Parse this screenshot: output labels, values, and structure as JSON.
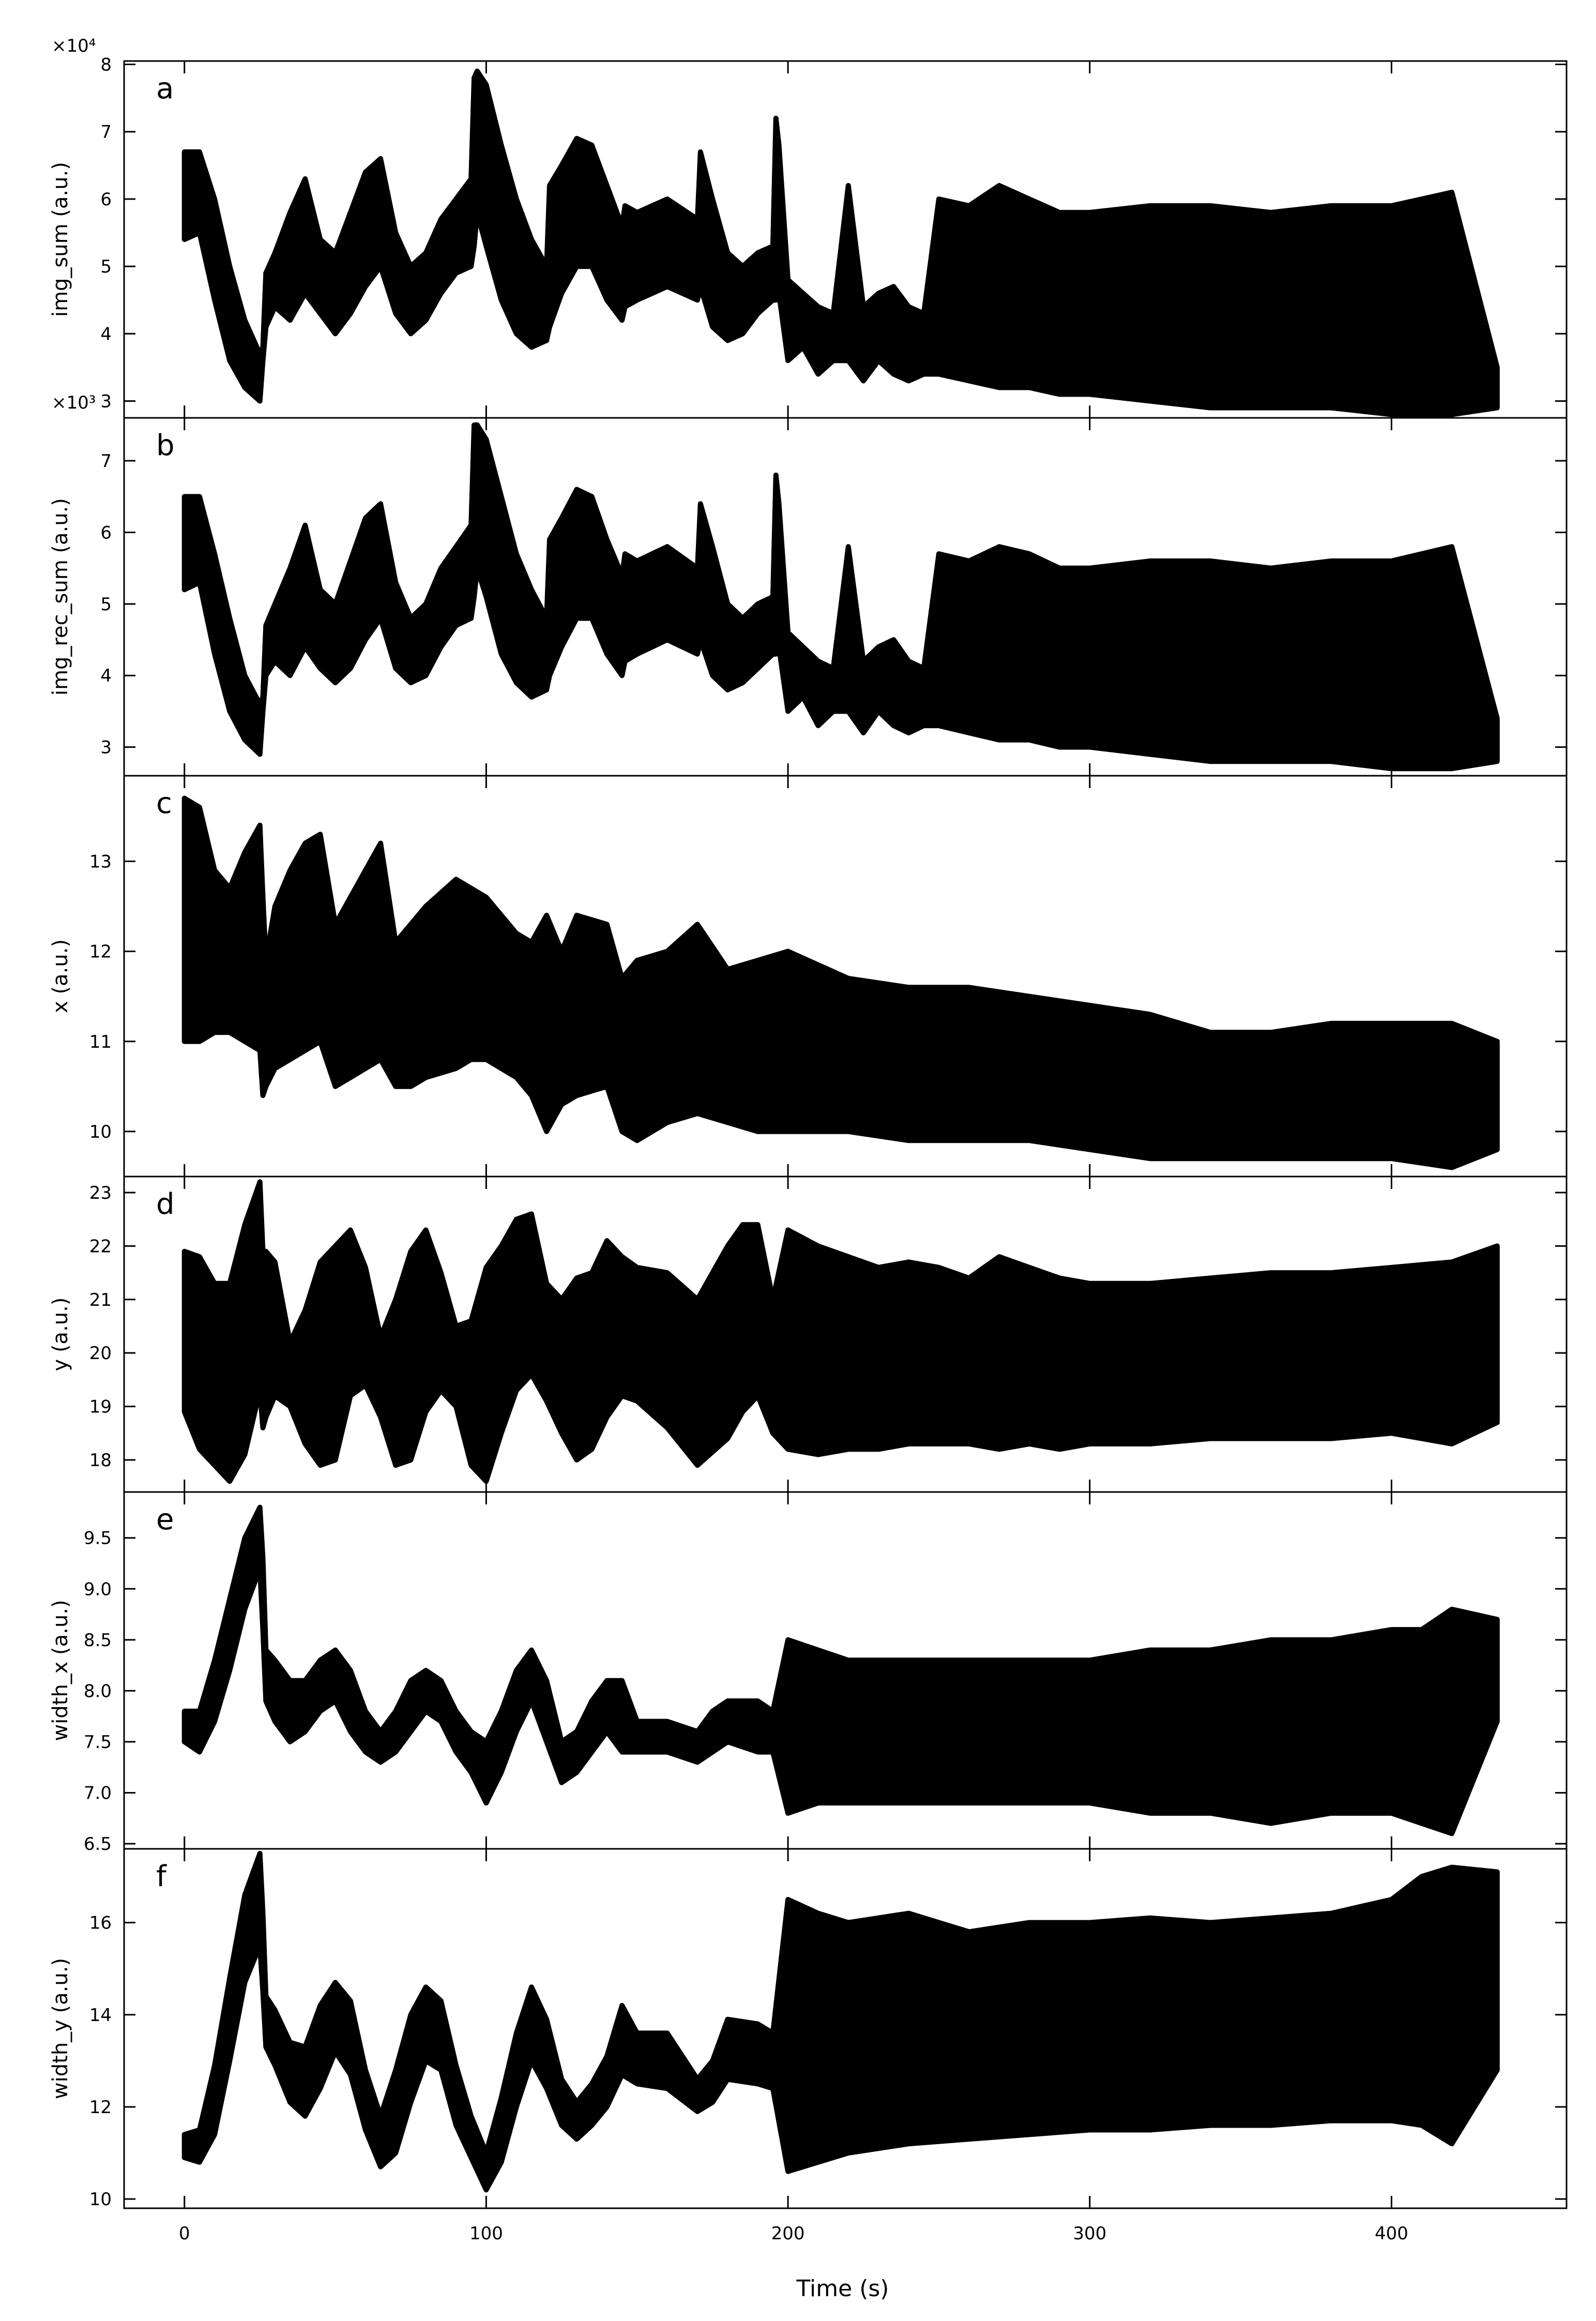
{
  "figure": {
    "xlabel": "Time (s)",
    "x_tick_labels": [
      "0",
      "100",
      "200",
      "300",
      "400"
    ]
  },
  "chart_data": [
    {
      "type": "scatter",
      "panel_label": "a",
      "ylabel": "img_sum (a.u.)",
      "y_multiplier": "×10⁴",
      "xlim": [
        -20,
        458
      ],
      "ylim": [
        2.75,
        8.05
      ],
      "y_ticks": [
        3,
        4,
        5,
        6,
        7,
        8
      ],
      "y_tick_labels": [
        "3",
        "4",
        "5",
        "6",
        "7",
        "8"
      ],
      "envelope_x": [
        0,
        5,
        10,
        15,
        20,
        25,
        26,
        27,
        30,
        35,
        40,
        45,
        50,
        55,
        60,
        65,
        70,
        75,
        80,
        85,
        90,
        95,
        96,
        97,
        100,
        105,
        110,
        115,
        120,
        121,
        125,
        130,
        135,
        140,
        145,
        146,
        150,
        160,
        170,
        171,
        175,
        180,
        185,
        190,
        195,
        196,
        197,
        200,
        205,
        210,
        215,
        220,
        225,
        230,
        235,
        240,
        245,
        250,
        260,
        270,
        280,
        290,
        300,
        320,
        340,
        360,
        380,
        400,
        420,
        435
      ],
      "envelope_upper": [
        6.7,
        6.7,
        6.0,
        5.0,
        4.2,
        3.7,
        3.8,
        4.9,
        5.2,
        5.8,
        6.3,
        5.4,
        5.2,
        5.8,
        6.4,
        6.6,
        5.5,
        5.0,
        5.2,
        5.7,
        6.0,
        6.3,
        7.8,
        7.9,
        7.7,
        6.8,
        6.0,
        5.4,
        5.0,
        6.2,
        6.5,
        6.9,
        6.8,
        6.2,
        5.6,
        5.9,
        5.8,
        6.0,
        5.7,
        6.7,
        6.0,
        5.2,
        5.0,
        5.2,
        5.3,
        7.2,
        6.8,
        4.8,
        4.6,
        4.4,
        4.3,
        6.2,
        4.4,
        4.6,
        4.7,
        4.4,
        4.3,
        6.0,
        5.9,
        6.2,
        6.0,
        5.8,
        5.8,
        5.9,
        5.9,
        5.8,
        5.9,
        5.9,
        6.1,
        3.5
      ],
      "envelope_lower": [
        5.4,
        5.5,
        4.5,
        3.6,
        3.2,
        3.0,
        3.6,
        4.1,
        4.4,
        4.2,
        4.6,
        4.3,
        4.0,
        4.3,
        4.7,
        5.0,
        4.3,
        4.0,
        4.2,
        4.6,
        4.9,
        5.0,
        5.3,
        5.8,
        5.3,
        4.5,
        4.0,
        3.8,
        3.9,
        4.1,
        4.6,
        5.0,
        5.0,
        4.5,
        4.2,
        4.4,
        4.5,
        4.7,
        4.5,
        4.7,
        4.1,
        3.9,
        4.0,
        4.3,
        4.5,
        4.5,
        4.6,
        3.6,
        3.8,
        3.4,
        3.6,
        3.6,
        3.3,
        3.6,
        3.4,
        3.3,
        3.4,
        3.4,
        3.3,
        3.2,
        3.2,
        3.1,
        3.1,
        3.0,
        2.9,
        2.9,
        2.9,
        2.8,
        2.8,
        2.9
      ]
    },
    {
      "type": "scatter",
      "panel_label": "b",
      "ylabel": "img_rec_sum (a.u.)",
      "y_multiplier": "×10³",
      "xlim": [
        -20,
        458
      ],
      "ylim": [
        2.6,
        7.6
      ],
      "y_ticks": [
        3,
        4,
        5,
        6,
        7
      ],
      "y_tick_labels": [
        "3",
        "4",
        "5",
        "6",
        "7"
      ],
      "envelope_x": [
        0,
        5,
        10,
        15,
        20,
        25,
        26,
        27,
        30,
        35,
        40,
        45,
        50,
        55,
        60,
        65,
        70,
        75,
        80,
        85,
        90,
        95,
        96,
        97,
        100,
        105,
        110,
        115,
        120,
        121,
        125,
        130,
        135,
        140,
        145,
        146,
        150,
        160,
        170,
        171,
        175,
        180,
        185,
        190,
        195,
        196,
        197,
        200,
        205,
        210,
        215,
        220,
        225,
        230,
        235,
        240,
        245,
        250,
        260,
        270,
        280,
        290,
        300,
        320,
        340,
        360,
        380,
        400,
        420,
        435
      ],
      "envelope_upper": [
        6.5,
        6.5,
        5.7,
        4.8,
        4.0,
        3.6,
        3.7,
        4.7,
        5.0,
        5.5,
        6.1,
        5.2,
        5.0,
        5.6,
        6.2,
        6.4,
        5.3,
        4.8,
        5.0,
        5.5,
        5.8,
        6.1,
        7.5,
        7.5,
        7.3,
        6.5,
        5.7,
        5.2,
        4.8,
        5.9,
        6.2,
        6.6,
        6.5,
        5.9,
        5.4,
        5.7,
        5.6,
        5.8,
        5.5,
        6.4,
        5.8,
        5.0,
        4.8,
        5.0,
        5.1,
        6.8,
        6.4,
        4.6,
        4.4,
        4.2,
        4.1,
        5.8,
        4.2,
        4.4,
        4.5,
        4.2,
        4.1,
        5.7,
        5.6,
        5.8,
        5.7,
        5.5,
        5.5,
        5.6,
        5.6,
        5.5,
        5.6,
        5.6,
        5.8,
        3.4
      ],
      "envelope_lower": [
        5.2,
        5.3,
        4.3,
        3.5,
        3.1,
        2.9,
        3.5,
        4.0,
        4.2,
        4.0,
        4.4,
        4.1,
        3.9,
        4.1,
        4.5,
        4.8,
        4.1,
        3.9,
        4.0,
        4.4,
        4.7,
        4.8,
        5.1,
        5.5,
        5.1,
        4.3,
        3.9,
        3.7,
        3.8,
        4.0,
        4.4,
        4.8,
        4.8,
        4.3,
        4.0,
        4.2,
        4.3,
        4.5,
        4.3,
        4.5,
        4.0,
        3.8,
        3.9,
        4.1,
        4.3,
        4.3,
        4.4,
        3.5,
        3.7,
        3.3,
        3.5,
        3.5,
        3.2,
        3.5,
        3.3,
        3.2,
        3.3,
        3.3,
        3.2,
        3.1,
        3.1,
        3.0,
        3.0,
        2.9,
        2.8,
        2.8,
        2.8,
        2.7,
        2.7,
        2.8
      ]
    },
    {
      "type": "scatter",
      "panel_label": "c",
      "ylabel": "x (a.u.)",
      "xlim": [
        -20,
        458
      ],
      "ylim": [
        9.5,
        13.95
      ],
      "y_ticks": [
        10,
        11,
        12,
        13
      ],
      "y_tick_labels": [
        "10",
        "11",
        "12",
        "13"
      ],
      "envelope_x": [
        0,
        5,
        10,
        15,
        20,
        25,
        26,
        27,
        30,
        35,
        40,
        45,
        50,
        55,
        60,
        65,
        70,
        75,
        80,
        90,
        95,
        100,
        105,
        110,
        115,
        120,
        125,
        130,
        140,
        145,
        150,
        160,
        170,
        180,
        190,
        200,
        220,
        240,
        260,
        280,
        300,
        320,
        340,
        360,
        380,
        400,
        420,
        435
      ],
      "envelope_upper": [
        13.7,
        13.6,
        12.9,
        12.7,
        13.1,
        13.4,
        12.6,
        11.9,
        12.5,
        12.9,
        13.2,
        13.3,
        12.3,
        12.6,
        12.9,
        13.2,
        12.1,
        12.3,
        12.5,
        12.8,
        12.7,
        12.6,
        12.4,
        12.2,
        12.1,
        12.4,
        12.0,
        12.4,
        12.3,
        11.7,
        11.9,
        12.0,
        12.3,
        11.8,
        11.9,
        12.0,
        11.7,
        11.6,
        11.6,
        11.5,
        11.4,
        11.3,
        11.1,
        11.1,
        11.2,
        11.2,
        11.2,
        11.0
      ],
      "envelope_lower": [
        11.0,
        11.0,
        11.1,
        11.1,
        11.0,
        10.9,
        10.4,
        10.5,
        10.7,
        10.8,
        10.9,
        11.0,
        10.5,
        10.6,
        10.7,
        10.8,
        10.5,
        10.5,
        10.6,
        10.7,
        10.8,
        10.8,
        10.7,
        10.6,
        10.4,
        10.0,
        10.3,
        10.4,
        10.5,
        10.0,
        9.9,
        10.1,
        10.2,
        10.1,
        10.0,
        10.0,
        10.0,
        9.9,
        9.9,
        9.9,
        9.8,
        9.7,
        9.7,
        9.7,
        9.7,
        9.7,
        9.6,
        9.8
      ]
    },
    {
      "type": "scatter",
      "panel_label": "d",
      "ylabel": "y (a.u.)",
      "xlim": [
        -20,
        458
      ],
      "ylim": [
        17.4,
        23.3
      ],
      "y_ticks": [
        18,
        19,
        20,
        21,
        22,
        23
      ],
      "y_tick_labels": [
        "18",
        "19",
        "20",
        "21",
        "22",
        "23"
      ],
      "envelope_x": [
        0,
        5,
        10,
        15,
        20,
        25,
        26,
        27,
        30,
        35,
        40,
        45,
        50,
        55,
        60,
        65,
        70,
        75,
        80,
        85,
        90,
        95,
        100,
        105,
        110,
        115,
        120,
        125,
        130,
        135,
        140,
        145,
        150,
        160,
        170,
        180,
        185,
        190,
        195,
        200,
        210,
        220,
        230,
        240,
        250,
        260,
        270,
        280,
        290,
        300,
        320,
        340,
        360,
        380,
        400,
        420,
        435
      ],
      "envelope_upper": [
        21.9,
        21.8,
        21.3,
        21.3,
        22.4,
        23.2,
        21.9,
        21.9,
        21.7,
        20.2,
        20.8,
        21.7,
        22.0,
        22.3,
        21.6,
        20.3,
        21.0,
        21.9,
        22.3,
        21.5,
        20.5,
        20.6,
        21.6,
        22.0,
        22.5,
        22.6,
        21.3,
        21.0,
        21.4,
        21.5,
        22.1,
        21.8,
        21.6,
        21.5,
        21.0,
        22.0,
        22.4,
        22.4,
        21.0,
        22.3,
        22.0,
        21.8,
        21.6,
        21.7,
        21.6,
        21.4,
        21.8,
        21.6,
        21.4,
        21.3,
        21.3,
        21.4,
        21.5,
        21.5,
        21.6,
        21.7,
        22.0
      ],
      "envelope_lower": [
        18.9,
        18.2,
        17.9,
        17.6,
        18.1,
        19.3,
        18.6,
        18.8,
        19.2,
        19.0,
        18.3,
        17.9,
        18.0,
        19.2,
        19.4,
        18.8,
        17.9,
        18.0,
        18.9,
        19.3,
        19.0,
        17.9,
        17.6,
        18.5,
        19.3,
        19.6,
        19.1,
        18.5,
        18.0,
        18.2,
        18.8,
        19.2,
        19.1,
        18.6,
        17.9,
        18.4,
        18.9,
        19.2,
        18.5,
        18.2,
        18.1,
        18.2,
        18.2,
        18.3,
        18.3,
        18.3,
        18.2,
        18.3,
        18.2,
        18.3,
        18.3,
        18.4,
        18.4,
        18.4,
        18.5,
        18.3,
        18.7
      ]
    },
    {
      "type": "scatter",
      "panel_label": "e",
      "ylabel": "width_x (a.u.)",
      "xlim": [
        -20,
        458
      ],
      "ylim": [
        6.45,
        9.95
      ],
      "y_ticks": [
        6.5,
        7.0,
        7.5,
        8.0,
        8.5,
        9.0,
        9.5
      ],
      "y_tick_labels": [
        "6.5",
        "7.0",
        "7.5",
        "8.0",
        "8.5",
        "9.0",
        "9.5"
      ],
      "envelope_x": [
        0,
        5,
        10,
        15,
        20,
        25,
        26,
        27,
        30,
        35,
        40,
        45,
        50,
        55,
        60,
        65,
        70,
        75,
        80,
        85,
        90,
        95,
        100,
        105,
        110,
        115,
        120,
        125,
        130,
        135,
        140,
        145,
        150,
        160,
        170,
        175,
        180,
        190,
        195,
        200,
        210,
        220,
        240,
        260,
        280,
        300,
        320,
        340,
        360,
        380,
        400,
        410,
        420,
        435
      ],
      "envelope_upper": [
        7.8,
        7.8,
        8.3,
        8.9,
        9.5,
        9.8,
        9.3,
        8.4,
        8.3,
        8.1,
        8.1,
        8.3,
        8.4,
        8.2,
        7.8,
        7.6,
        7.8,
        8.1,
        8.2,
        8.1,
        7.8,
        7.6,
        7.5,
        7.8,
        8.2,
        8.4,
        8.1,
        7.5,
        7.6,
        7.9,
        8.1,
        8.1,
        7.7,
        7.7,
        7.6,
        7.8,
        7.9,
        7.9,
        7.8,
        8.5,
        8.4,
        8.3,
        8.3,
        8.3,
        8.3,
        8.3,
        8.4,
        8.4,
        8.5,
        8.5,
        8.6,
        8.6,
        8.8,
        8.7
      ],
      "envelope_lower": [
        7.5,
        7.4,
        7.7,
        8.2,
        8.8,
        9.2,
        8.6,
        7.9,
        7.7,
        7.5,
        7.6,
        7.8,
        7.9,
        7.6,
        7.4,
        7.3,
        7.4,
        7.6,
        7.8,
        7.7,
        7.4,
        7.2,
        6.9,
        7.2,
        7.6,
        7.9,
        7.5,
        7.1,
        7.2,
        7.4,
        7.6,
        7.4,
        7.4,
        7.4,
        7.3,
        7.4,
        7.5,
        7.4,
        7.4,
        6.8,
        6.9,
        6.9,
        6.9,
        6.9,
        6.9,
        6.9,
        6.8,
        6.8,
        6.7,
        6.8,
        6.8,
        6.7,
        6.6,
        7.7
      ]
    },
    {
      "type": "scatter",
      "panel_label": "f",
      "ylabel": "width_y (a.u.)",
      "xlim": [
        -20,
        458
      ],
      "ylim": [
        9.8,
        17.6
      ],
      "y_ticks": [
        10,
        12,
        14,
        16
      ],
      "y_tick_labels": [
        "10",
        "12",
        "14",
        "16"
      ],
      "envelope_x": [
        0,
        5,
        10,
        15,
        20,
        25,
        26,
        27,
        30,
        35,
        40,
        45,
        50,
        55,
        60,
        65,
        70,
        75,
        80,
        85,
        90,
        95,
        100,
        105,
        110,
        115,
        120,
        125,
        130,
        135,
        140,
        145,
        150,
        160,
        170,
        175,
        180,
        190,
        195,
        200,
        210,
        220,
        240,
        260,
        280,
        300,
        320,
        340,
        360,
        380,
        400,
        410,
        420,
        435
      ],
      "envelope_upper": [
        11.4,
        11.5,
        12.9,
        14.8,
        16.6,
        17.5,
        16.2,
        14.4,
        14.1,
        13.4,
        13.3,
        14.2,
        14.7,
        14.3,
        12.8,
        11.8,
        12.8,
        14.0,
        14.6,
        14.3,
        12.9,
        11.8,
        11.0,
        12.2,
        13.6,
        14.6,
        13.9,
        12.6,
        12.1,
        12.5,
        13.1,
        14.2,
        13.6,
        13.6,
        12.6,
        13.0,
        13.9,
        13.8,
        13.6,
        16.5,
        16.2,
        16.0,
        16.2,
        15.8,
        16.0,
        16.0,
        16.1,
        16.0,
        16.1,
        16.2,
        16.5,
        17.0,
        17.2,
        17.1
      ],
      "envelope_lower": [
        10.9,
        10.8,
        11.4,
        13.0,
        14.7,
        15.5,
        14.5,
        13.3,
        12.9,
        12.1,
        11.8,
        12.4,
        13.2,
        12.7,
        11.5,
        10.7,
        11.0,
        12.1,
        13.0,
        12.8,
        11.6,
        10.9,
        10.2,
        10.8,
        12.0,
        13.0,
        12.4,
        11.6,
        11.3,
        11.6,
        12.0,
        12.7,
        12.5,
        12.4,
        11.9,
        12.1,
        12.6,
        12.5,
        12.4,
        10.6,
        10.8,
        11.0,
        11.2,
        11.3,
        11.4,
        11.5,
        11.5,
        11.6,
        11.6,
        11.7,
        11.7,
        11.6,
        11.2,
        12.8
      ]
    }
  ]
}
